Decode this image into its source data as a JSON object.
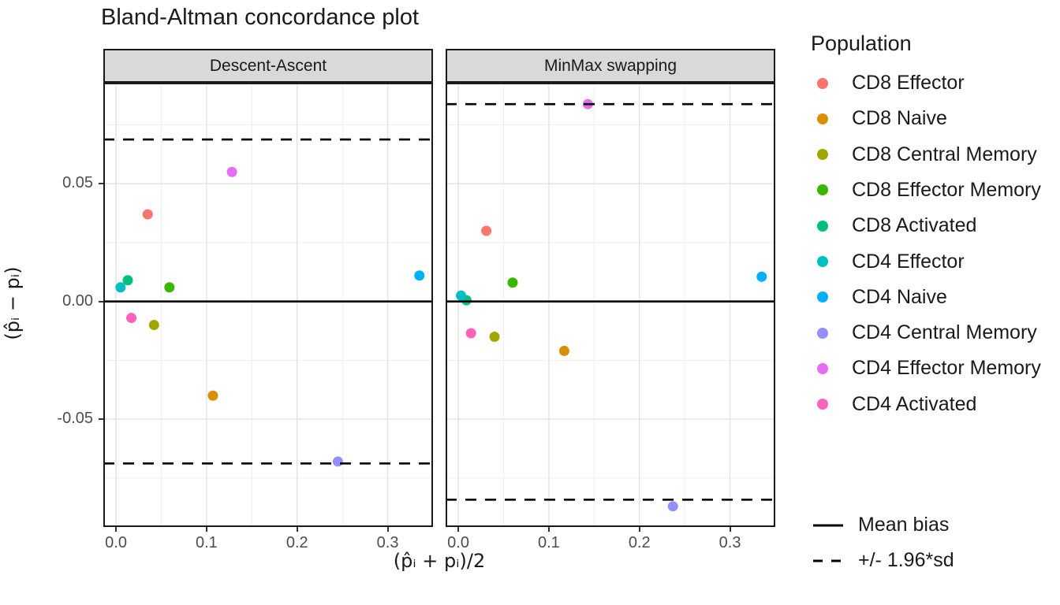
{
  "title": "Bland-Altman concordance plot",
  "axes": {
    "x_title": "(p̂ᵢ + pᵢ)/2",
    "y_title": "(p̂ᵢ − pᵢ)"
  },
  "legend": {
    "title": "Population"
  },
  "chart_data": {
    "type": "scatter",
    "title": "Bland-Altman concordance plot",
    "xlabel": "(p̂ᵢ + pᵢ)/2",
    "ylabel": "(p̂ᵢ − pᵢ)",
    "xlim": [
      -0.014,
      0.35
    ],
    "ylim": [
      -0.0958,
      0.0929
    ],
    "x_major_ticks": [
      0.0,
      0.1,
      0.2,
      0.3
    ],
    "x_tick_labels": [
      "0.0",
      "0.1",
      "0.2",
      "0.3"
    ],
    "x_minor_ticks": [
      0.05,
      0.15,
      0.25,
      0.35
    ],
    "y_major_ticks": [
      0.05,
      0.0,
      -0.05
    ],
    "y_tick_labels": [
      "0.05",
      "0.00",
      "-0.05"
    ],
    "y_minor_ticks": [
      0.075,
      0.025,
      -0.025,
      -0.075
    ],
    "grid": true,
    "legend_position": "right",
    "populations": [
      {
        "name": "CD8 Effector",
        "color": "#F8766D"
      },
      {
        "name": "CD8 Naive",
        "color": "#D89000"
      },
      {
        "name": "CD8 Central Memory",
        "color": "#A3A500"
      },
      {
        "name": "CD8 Effector Memory",
        "color": "#39B600"
      },
      {
        "name": "CD8 Activated",
        "color": "#00BF7D"
      },
      {
        "name": "CD4 Effector",
        "color": "#00BFC4"
      },
      {
        "name": "CD4 Naive",
        "color": "#00B0F6"
      },
      {
        "name": "CD4 Central Memory",
        "color": "#9590FF"
      },
      {
        "name": "CD4 Effector Memory",
        "color": "#E76BF3"
      },
      {
        "name": "CD4 Activated",
        "color": "#FF62BC"
      }
    ],
    "facets": [
      {
        "label": "Descent-Ascent",
        "mean_bias": 0.0,
        "upper_limit": 0.0688,
        "lower_limit": -0.0688,
        "points": [
          {
            "population": "CD8 Effector",
            "x": 0.035,
            "y": 0.037
          },
          {
            "population": "CD8 Naive",
            "x": 0.107,
            "y": -0.04
          },
          {
            "population": "CD8 Central Memory",
            "x": 0.042,
            "y": -0.01
          },
          {
            "population": "CD8 Effector Memory",
            "x": 0.059,
            "y": 0.006
          },
          {
            "population": "CD8 Activated",
            "x": 0.013,
            "y": 0.009
          },
          {
            "population": "CD4 Effector",
            "x": 0.005,
            "y": 0.006
          },
          {
            "population": "CD4 Naive",
            "x": 0.335,
            "y": 0.011
          },
          {
            "population": "CD4 Central Memory",
            "x": 0.245,
            "y": -0.068
          },
          {
            "population": "CD4 Effector Memory",
            "x": 0.128,
            "y": 0.055
          },
          {
            "population": "CD4 Activated",
            "x": 0.017,
            "y": -0.007
          }
        ]
      },
      {
        "label": "MinMax swapping",
        "mean_bias": 0.0,
        "upper_limit": 0.0838,
        "lower_limit": -0.0842,
        "points": [
          {
            "population": "CD8 Effector",
            "x": 0.031,
            "y": 0.03
          },
          {
            "population": "CD8 Naive",
            "x": 0.117,
            "y": -0.021
          },
          {
            "population": "CD8 Central Memory",
            "x": 0.04,
            "y": -0.015
          },
          {
            "population": "CD8 Effector Memory",
            "x": 0.06,
            "y": 0.008
          },
          {
            "population": "CD8 Activated",
            "x": 0.009,
            "y": 0.0005
          },
          {
            "population": "CD4 Effector",
            "x": 0.003,
            "y": 0.0025
          },
          {
            "population": "CD4 Naive",
            "x": 0.335,
            "y": 0.0105
          },
          {
            "population": "CD4 Central Memory",
            "x": 0.237,
            "y": -0.087
          },
          {
            "population": "CD4 Effector Memory",
            "x": 0.143,
            "y": 0.0838
          },
          {
            "population": "CD4 Activated",
            "x": 0.014,
            "y": -0.0135
          }
        ]
      }
    ],
    "line_legend": [
      {
        "label": "Mean bias",
        "style": "solid"
      },
      {
        "label": "+/- 1.96*sd",
        "style": "dashed"
      }
    ]
  }
}
